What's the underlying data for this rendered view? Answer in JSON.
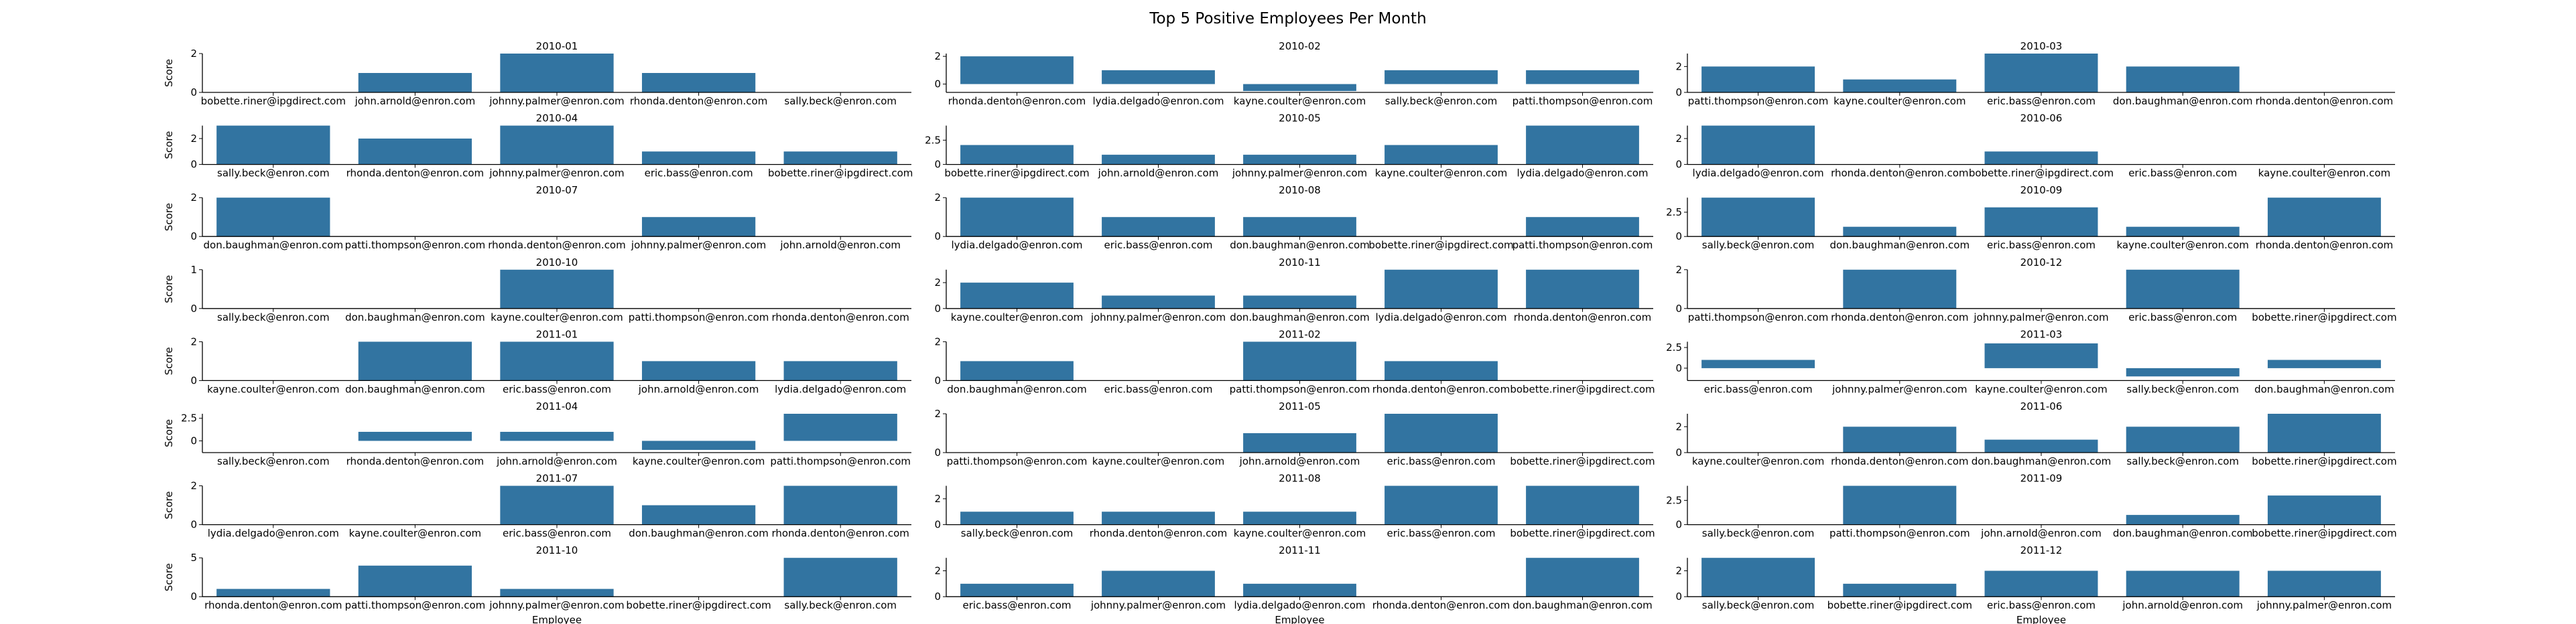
{
  "figure": {
    "title": "Top 5 Positive Employees Per Month",
    "bar_color": "#3274a1",
    "axis_color": "#000000"
  },
  "chart_data": [
    {
      "type": "bar",
      "title": "2010-01",
      "ylabel": "Score",
      "xlabel": "",
      "categories": [
        "bobette.riner@ipgdirect.com",
        "john.arnold@enron.com",
        "johnny.palmer@enron.com",
        "rhonda.denton@enron.com",
        "sally.beck@enron.com"
      ],
      "values": [
        0,
        1,
        2,
        1,
        0
      ],
      "ylim": [
        0,
        2
      ],
      "yticks": [
        0,
        2
      ]
    },
    {
      "type": "bar",
      "title": "2010-02",
      "ylabel": "",
      "xlabel": "",
      "categories": [
        "rhonda.denton@enron.com",
        "lydia.delgado@enron.com",
        "kayne.coulter@enron.com",
        "sally.beck@enron.com",
        "patti.thompson@enron.com"
      ],
      "values": [
        2,
        1,
        -0.5,
        1,
        1
      ],
      "ylim": [
        -0.6,
        2.2
      ],
      "yticks": [
        0,
        2
      ]
    },
    {
      "type": "bar",
      "title": "2010-03",
      "ylabel": "",
      "xlabel": "",
      "categories": [
        "patti.thompson@enron.com",
        "kayne.coulter@enron.com",
        "eric.bass@enron.com",
        "don.baughman@enron.com",
        "rhonda.denton@enron.com"
      ],
      "values": [
        2,
        1,
        3,
        2,
        0
      ],
      "ylim": [
        0,
        3
      ],
      "yticks": [
        0,
        2
      ]
    },
    {
      "type": "bar",
      "title": "2010-04",
      "ylabel": "Score",
      "xlabel": "",
      "categories": [
        "sally.beck@enron.com",
        "rhonda.denton@enron.com",
        "johnny.palmer@enron.com",
        "eric.bass@enron.com",
        "bobette.riner@ipgdirect.com"
      ],
      "values": [
        3,
        2,
        3,
        1,
        1
      ],
      "ylim": [
        0,
        3
      ],
      "yticks": [
        0,
        2
      ]
    },
    {
      "type": "bar",
      "title": "2010-05",
      "ylabel": "",
      "xlabel": "",
      "categories": [
        "bobette.riner@ipgdirect.com",
        "john.arnold@enron.com",
        "johnny.palmer@enron.com",
        "kayne.coulter@enron.com",
        "lydia.delgado@enron.com"
      ],
      "values": [
        2,
        1,
        1,
        2,
        4
      ],
      "ylim": [
        0,
        4
      ],
      "yticks": [
        0,
        2.5
      ]
    },
    {
      "type": "bar",
      "title": "2010-06",
      "ylabel": "",
      "xlabel": "",
      "categories": [
        "lydia.delgado@enron.com",
        "rhonda.denton@enron.com",
        "bobette.riner@ipgdirect.com",
        "eric.bass@enron.com",
        "kayne.coulter@enron.com"
      ],
      "values": [
        3,
        0,
        1,
        0,
        0
      ],
      "ylim": [
        0,
        3
      ],
      "yticks": [
        0,
        2
      ]
    },
    {
      "type": "bar",
      "title": "2010-07",
      "ylabel": "Score",
      "xlabel": "",
      "categories": [
        "don.baughman@enron.com",
        "patti.thompson@enron.com",
        "rhonda.denton@enron.com",
        "johnny.palmer@enron.com",
        "john.arnold@enron.com"
      ],
      "values": [
        2,
        0,
        0,
        1,
        0
      ],
      "ylim": [
        0,
        2
      ],
      "yticks": [
        0,
        2
      ]
    },
    {
      "type": "bar",
      "title": "2010-08",
      "ylabel": "",
      "xlabel": "",
      "categories": [
        "lydia.delgado@enron.com",
        "eric.bass@enron.com",
        "don.baughman@enron.com",
        "bobette.riner@ipgdirect.com",
        "patti.thompson@enron.com"
      ],
      "values": [
        2,
        1,
        1,
        0,
        1
      ],
      "ylim": [
        0,
        2
      ],
      "yticks": [
        0,
        2
      ]
    },
    {
      "type": "bar",
      "title": "2010-09",
      "ylabel": "",
      "xlabel": "",
      "categories": [
        "sally.beck@enron.com",
        "don.baughman@enron.com",
        "eric.bass@enron.com",
        "kayne.coulter@enron.com",
        "rhonda.denton@enron.com"
      ],
      "values": [
        4,
        1,
        3,
        1,
        4
      ],
      "ylim": [
        0,
        4
      ],
      "yticks": [
        0,
        2.5
      ]
    },
    {
      "type": "bar",
      "title": "2010-10",
      "ylabel": "Score",
      "xlabel": "",
      "categories": [
        "sally.beck@enron.com",
        "don.baughman@enron.com",
        "kayne.coulter@enron.com",
        "patti.thompson@enron.com",
        "rhonda.denton@enron.com"
      ],
      "values": [
        0,
        0,
        1,
        0,
        0
      ],
      "ylim": [
        0,
        1
      ],
      "yticks": [
        0,
        1
      ]
    },
    {
      "type": "bar",
      "title": "2010-11",
      "ylabel": "",
      "xlabel": "",
      "categories": [
        "kayne.coulter@enron.com",
        "johnny.palmer@enron.com",
        "don.baughman@enron.com",
        "lydia.delgado@enron.com",
        "rhonda.denton@enron.com"
      ],
      "values": [
        2,
        1,
        1,
        3,
        3
      ],
      "ylim": [
        0,
        3
      ],
      "yticks": [
        0,
        2
      ]
    },
    {
      "type": "bar",
      "title": "2010-12",
      "ylabel": "",
      "xlabel": "",
      "categories": [
        "patti.thompson@enron.com",
        "rhonda.denton@enron.com",
        "johnny.palmer@enron.com",
        "eric.bass@enron.com",
        "bobette.riner@ipgdirect.com"
      ],
      "values": [
        0,
        2,
        0,
        2,
        0
      ],
      "ylim": [
        0,
        2
      ],
      "yticks": [
        0,
        2
      ]
    },
    {
      "type": "bar",
      "title": "2011-01",
      "ylabel": "Score",
      "xlabel": "",
      "categories": [
        "kayne.coulter@enron.com",
        "don.baughman@enron.com",
        "eric.bass@enron.com",
        "john.arnold@enron.com",
        "lydia.delgado@enron.com"
      ],
      "values": [
        0,
        2,
        2,
        1,
        1
      ],
      "ylim": [
        0,
        2
      ],
      "yticks": [
        0,
        2
      ]
    },
    {
      "type": "bar",
      "title": "2011-02",
      "ylabel": "",
      "xlabel": "",
      "categories": [
        "don.baughman@enron.com",
        "eric.bass@enron.com",
        "patti.thompson@enron.com",
        "rhonda.denton@enron.com",
        "bobette.riner@ipgdirect.com"
      ],
      "values": [
        1,
        0,
        2,
        1,
        0
      ],
      "ylim": [
        0,
        2
      ],
      "yticks": [
        0,
        2
      ]
    },
    {
      "type": "bar",
      "title": "2011-03",
      "ylabel": "",
      "xlabel": "",
      "categories": [
        "eric.bass@enron.com",
        "johnny.palmer@enron.com",
        "kayne.coulter@enron.com",
        "sally.beck@enron.com",
        "don.baughman@enron.com"
      ],
      "values": [
        1,
        0,
        3,
        -1,
        1
      ],
      "ylim": [
        -1.5,
        3.2
      ],
      "yticks": [
        0,
        2.5
      ]
    },
    {
      "type": "bar",
      "title": "2011-04",
      "ylabel": "Score",
      "xlabel": "",
      "categories": [
        "sally.beck@enron.com",
        "rhonda.denton@enron.com",
        "john.arnold@enron.com",
        "kayne.coulter@enron.com",
        "patti.thompson@enron.com"
      ],
      "values": [
        0,
        1,
        1,
        -1,
        3
      ],
      "ylim": [
        -1.3,
        3
      ],
      "yticks": [
        0,
        2.5
      ]
    },
    {
      "type": "bar",
      "title": "2011-05",
      "ylabel": "",
      "xlabel": "",
      "categories": [
        "patti.thompson@enron.com",
        "kayne.coulter@enron.com",
        "john.arnold@enron.com",
        "eric.bass@enron.com",
        "bobette.riner@ipgdirect.com"
      ],
      "values": [
        0,
        0,
        1,
        2,
        0
      ],
      "ylim": [
        0,
        2
      ],
      "yticks": [
        0,
        2
      ]
    },
    {
      "type": "bar",
      "title": "2011-06",
      "ylabel": "",
      "xlabel": "",
      "categories": [
        "kayne.coulter@enron.com",
        "rhonda.denton@enron.com",
        "don.baughman@enron.com",
        "sally.beck@enron.com",
        "bobette.riner@ipgdirect.com"
      ],
      "values": [
        0,
        2,
        1,
        2,
        3
      ],
      "ylim": [
        0,
        3
      ],
      "yticks": [
        0,
        2
      ]
    },
    {
      "type": "bar",
      "title": "2011-07",
      "ylabel": "Score",
      "xlabel": "",
      "categories": [
        "lydia.delgado@enron.com",
        "kayne.coulter@enron.com",
        "eric.bass@enron.com",
        "don.baughman@enron.com",
        "rhonda.denton@enron.com"
      ],
      "values": [
        0,
        0,
        2,
        1,
        2
      ],
      "ylim": [
        0,
        2
      ],
      "yticks": [
        0,
        2
      ]
    },
    {
      "type": "bar",
      "title": "2011-08",
      "ylabel": "",
      "xlabel": "",
      "categories": [
        "sally.beck@enron.com",
        "rhonda.denton@enron.com",
        "kayne.coulter@enron.com",
        "eric.bass@enron.com",
        "bobette.riner@ipgdirect.com"
      ],
      "values": [
        1,
        1,
        1,
        3,
        3
      ],
      "ylim": [
        0,
        3
      ],
      "yticks": [
        0,
        2
      ]
    },
    {
      "type": "bar",
      "title": "2011-09",
      "ylabel": "",
      "xlabel": "",
      "categories": [
        "sally.beck@enron.com",
        "patti.thompson@enron.com",
        "john.arnold@enron.com",
        "don.baughman@enron.com",
        "bobette.riner@ipgdirect.com"
      ],
      "values": [
        0,
        4,
        0,
        1,
        3
      ],
      "ylim": [
        0,
        4
      ],
      "yticks": [
        0,
        2.5
      ]
    },
    {
      "type": "bar",
      "title": "2011-10",
      "ylabel": "Score",
      "xlabel": "Employee",
      "categories": [
        "rhonda.denton@enron.com",
        "patti.thompson@enron.com",
        "johnny.palmer@enron.com",
        "bobette.riner@ipgdirect.com",
        "sally.beck@enron.com"
      ],
      "values": [
        1,
        4,
        1,
        0,
        5
      ],
      "ylim": [
        0,
        5
      ],
      "yticks": [
        0,
        5
      ]
    },
    {
      "type": "bar",
      "title": "2011-11",
      "ylabel": "",
      "xlabel": "Employee",
      "categories": [
        "eric.bass@enron.com",
        "johnny.palmer@enron.com",
        "lydia.delgado@enron.com",
        "rhonda.denton@enron.com",
        "don.baughman@enron.com"
      ],
      "values": [
        1,
        2,
        1,
        0,
        3
      ],
      "ylim": [
        0,
        3
      ],
      "yticks": [
        0,
        2
      ]
    },
    {
      "type": "bar",
      "title": "2011-12",
      "ylabel": "",
      "xlabel": "Employee",
      "categories": [
        "sally.beck@enron.com",
        "bobette.riner@ipgdirect.com",
        "eric.bass@enron.com",
        "john.arnold@enron.com",
        "johnny.palmer@enron.com"
      ],
      "values": [
        3,
        1,
        2,
        2,
        2
      ],
      "ylim": [
        0,
        3
      ],
      "yticks": [
        0,
        2
      ]
    }
  ]
}
